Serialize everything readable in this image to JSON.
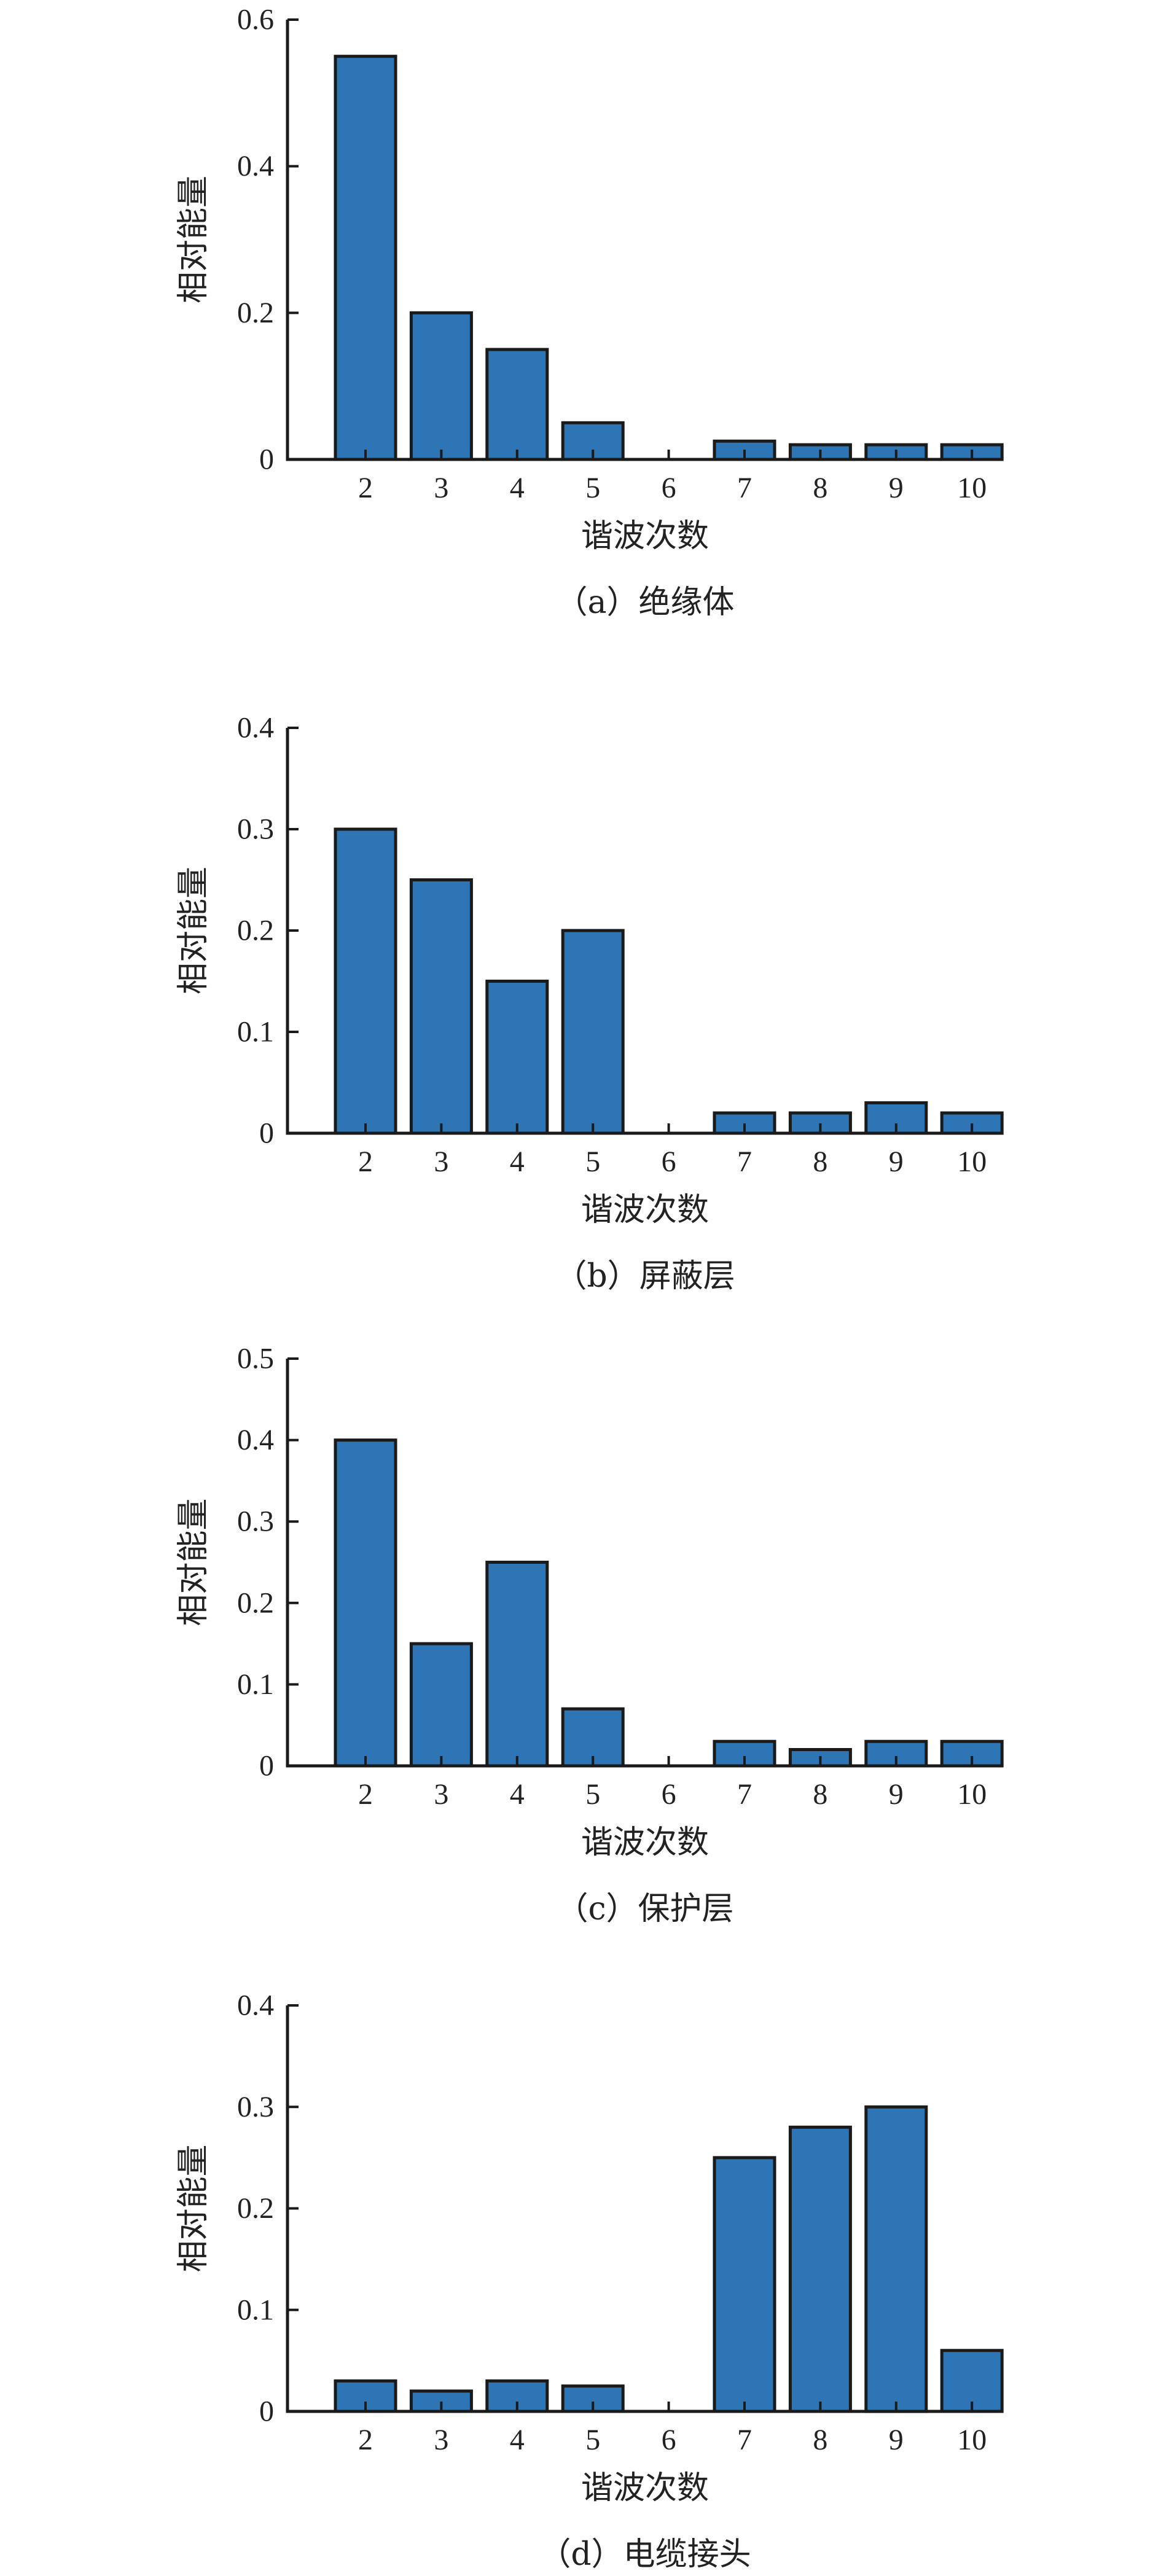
{
  "figure": {
    "bar_color": "#2e75b6",
    "axis_color": "#1a1a1a"
  },
  "chart_data": [
    {
      "type": "bar",
      "caption": "（a）绝缘体",
      "xlabel": "谐波次数",
      "ylabel": "相对能量",
      "categories": [
        "2",
        "3",
        "4",
        "5",
        "6",
        "7",
        "8",
        "9",
        "10"
      ],
      "values": [
        0.55,
        0.2,
        0.15,
        0.05,
        0,
        0.025,
        0.02,
        0.02,
        0.02
      ],
      "ylim": [
        0,
        0.6
      ],
      "yticks": [
        "0",
        "0.2",
        "0.4",
        "0.6"
      ],
      "grid": false
    },
    {
      "type": "bar",
      "caption": "（b）屏蔽层",
      "xlabel": "谐波次数",
      "ylabel": "相对能量",
      "categories": [
        "2",
        "3",
        "4",
        "5",
        "6",
        "7",
        "8",
        "9",
        "10"
      ],
      "values": [
        0.3,
        0.25,
        0.15,
        0.2,
        0,
        0.02,
        0.02,
        0.03,
        0.02
      ],
      "ylim": [
        0,
        0.4
      ],
      "yticks": [
        "0",
        "0.1",
        "0.2",
        "0.3",
        "0.4"
      ],
      "grid": false
    },
    {
      "type": "bar",
      "caption": "（c）保护层",
      "xlabel": "谐波次数",
      "ylabel": "相对能量",
      "categories": [
        "2",
        "3",
        "4",
        "5",
        "6",
        "7",
        "8",
        "9",
        "10"
      ],
      "values": [
        0.4,
        0.15,
        0.25,
        0.07,
        0,
        0.03,
        0.02,
        0.03,
        0.03
      ],
      "ylim": [
        0,
        0.5
      ],
      "yticks": [
        "0",
        "0.1",
        "0.2",
        "0.3",
        "0.4",
        "0.5"
      ],
      "grid": false
    },
    {
      "type": "bar",
      "caption": "（d）电缆接头",
      "xlabel": "谐波次数",
      "ylabel": "相对能量",
      "categories": [
        "2",
        "3",
        "4",
        "5",
        "6",
        "7",
        "8",
        "9",
        "10"
      ],
      "values": [
        0.03,
        0.02,
        0.03,
        0.025,
        0,
        0.25,
        0.28,
        0.3,
        0.06
      ],
      "ylim": [
        0,
        0.4
      ],
      "yticks": [
        "0",
        "0.1",
        "0.2",
        "0.3",
        "0.4"
      ],
      "grid": false
    }
  ]
}
